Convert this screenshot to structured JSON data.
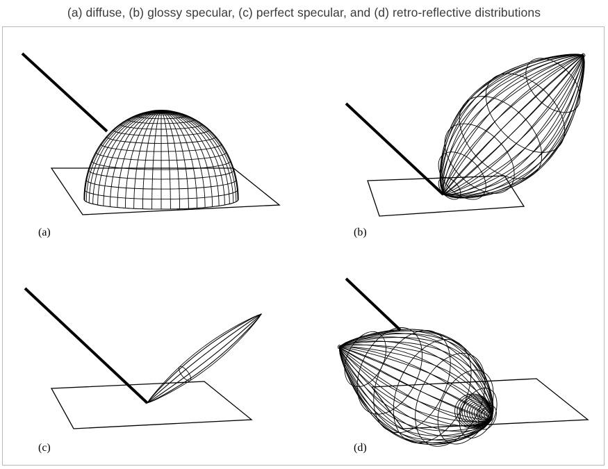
{
  "caption": "(a) diffuse, (b) glossy specular, (c) perfect specular, and (d) retro-reflective distributions",
  "panels": [
    {
      "id": "a",
      "label": "(a)"
    },
    {
      "id": "b",
      "label": "(b)"
    },
    {
      "id": "c",
      "label": "(c)"
    },
    {
      "id": "d",
      "label": "(d)"
    }
  ]
}
